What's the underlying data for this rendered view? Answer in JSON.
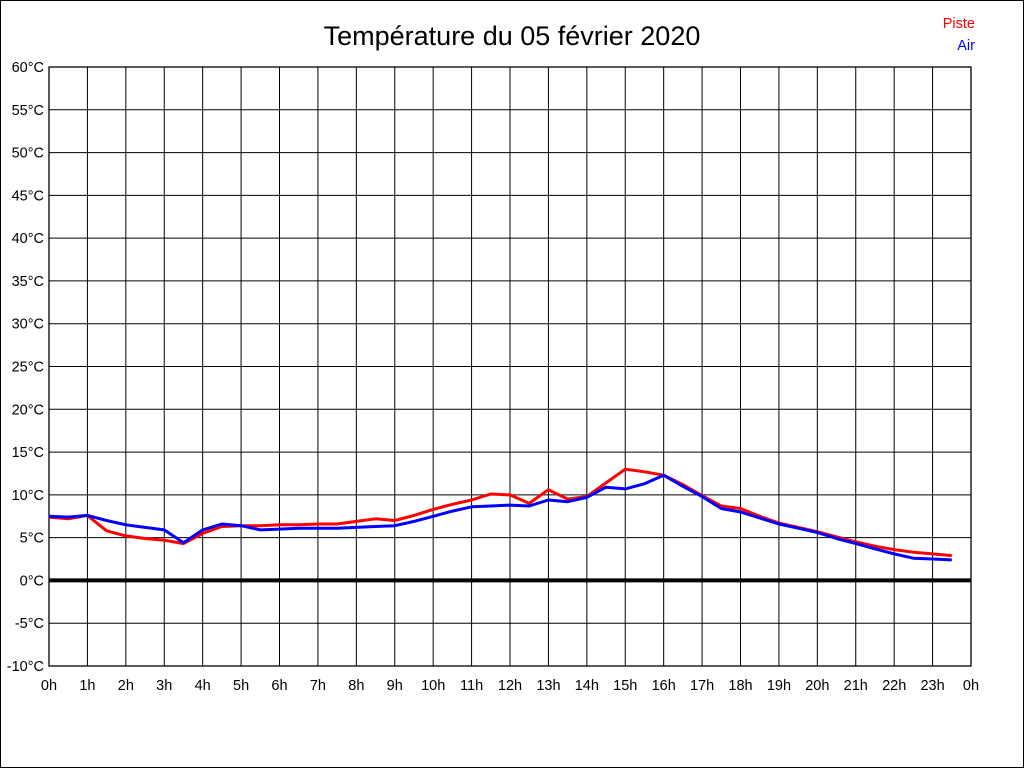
{
  "chart_data": {
    "type": "line",
    "title": "Température du 05 février 2020",
    "xlabel": "",
    "ylabel": "",
    "xlim": [
      0,
      24
    ],
    "ylim": [
      -10,
      60
    ],
    "grid": true,
    "legend_position": "top-right",
    "zero_line": {
      "value": 0,
      "color": "#000000",
      "width": 4
    },
    "axis_color": "#000000",
    "grid_color": "#000000",
    "x_tick_values": [
      0,
      1,
      2,
      3,
      4,
      5,
      6,
      7,
      8,
      9,
      10,
      11,
      12,
      13,
      14,
      15,
      16,
      17,
      18,
      19,
      20,
      21,
      22,
      23,
      24
    ],
    "x_tick_labels": [
      "0h",
      "1h",
      "2h",
      "3h",
      "4h",
      "5h",
      "6h",
      "7h",
      "8h",
      "9h",
      "10h",
      "11h",
      "12h",
      "13h",
      "14h",
      "15h",
      "16h",
      "17h",
      "18h",
      "19h",
      "20h",
      "21h",
      "22h",
      "23h",
      "0h"
    ],
    "y_tick_values": [
      60,
      55,
      50,
      45,
      40,
      35,
      30,
      25,
      20,
      15,
      10,
      5,
      0,
      -5,
      -10
    ],
    "y_tick_labels": [
      "60°C",
      "55°C",
      "50°C",
      "45°C",
      "40°C",
      "35°C",
      "30°C",
      "25°C",
      "20°C",
      "15°C",
      "10°C",
      "5°C",
      "0°C",
      "-5°C",
      "-10°C"
    ],
    "x": [
      0,
      0.5,
      1,
      1.5,
      2,
      2.5,
      3,
      3.5,
      4,
      4.5,
      5,
      5.5,
      6,
      6.5,
      7,
      7.5,
      8,
      8.5,
      9,
      9.5,
      10,
      10.5,
      11,
      11.5,
      12,
      12.5,
      13,
      13.5,
      14,
      14.5,
      15,
      15.5,
      16,
      16.5,
      17,
      17.5,
      18,
      18.5,
      19,
      19.5,
      20,
      20.5,
      21,
      21.5,
      22,
      22.5,
      23,
      23.5
    ],
    "series": [
      {
        "name": "Piste",
        "color": "#ff0000",
        "values": [
          7.4,
          7.2,
          7.6,
          5.8,
          5.2,
          4.9,
          4.7,
          4.3,
          5.5,
          6.3,
          6.4,
          6.4,
          6.5,
          6.5,
          6.6,
          6.6,
          6.9,
          7.2,
          7.0,
          7.6,
          8.3,
          8.9,
          9.4,
          10.1,
          10.0,
          9.0,
          10.6,
          9.5,
          9.8,
          11.4,
          13.0,
          12.7,
          12.3,
          11.2,
          9.9,
          8.7,
          8.4,
          7.5,
          6.7,
          6.2,
          5.7,
          5.1,
          4.5,
          4.0,
          3.6,
          3.3,
          3.1,
          2.9
        ]
      },
      {
        "name": "Air",
        "color": "#0000ff",
        "values": [
          7.5,
          7.4,
          7.6,
          7.0,
          6.5,
          6.2,
          5.9,
          4.4,
          5.9,
          6.6,
          6.4,
          5.9,
          6.0,
          6.1,
          6.1,
          6.1,
          6.2,
          6.3,
          6.4,
          6.9,
          7.5,
          8.1,
          8.6,
          8.7,
          8.8,
          8.7,
          9.4,
          9.2,
          9.7,
          10.9,
          10.7,
          11.3,
          12.3,
          11.0,
          9.8,
          8.4,
          8.0,
          7.3,
          6.6,
          6.1,
          5.6,
          4.9,
          4.3,
          3.7,
          3.1,
          2.6,
          2.5,
          2.4
        ]
      }
    ]
  }
}
